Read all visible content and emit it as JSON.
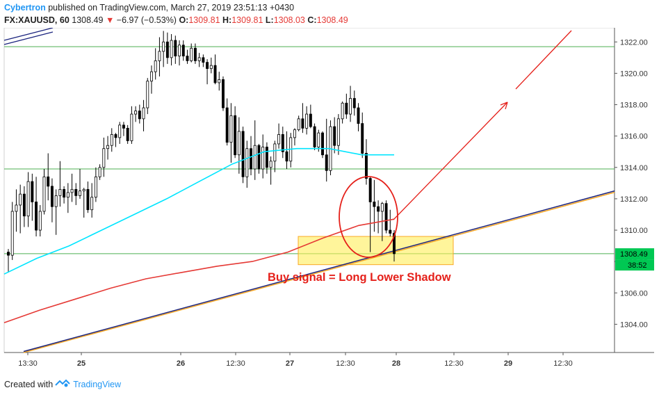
{
  "header": {
    "author": "Cybertron",
    "published_text": "published on TradingView.com, March 27, 2019 23:51:13 +0430"
  },
  "ohlc_bar": {
    "symbol": "FX:XAUUSD, 60",
    "last": "1308.49",
    "change": "−6.97 (−0.53%)",
    "o_label": "O:",
    "o_value": "1309.81",
    "h_label": "H:",
    "h_value": "1309.81",
    "l_label": "L:",
    "l_value": "1308.03",
    "c_label": "C:",
    "c_value": "1308.49"
  },
  "footer": {
    "created_with": "Created with",
    "brand": "TradingView"
  },
  "colors": {
    "up": "#000000",
    "down": "#000000",
    "ma_fast": "#00e5ff",
    "ma_slow": "#e53935",
    "trendline": "#1a237e",
    "hline": "#4caf50",
    "zone": "#ffee58",
    "annotation": "#e5201a",
    "price_label": "#00c853"
  },
  "chart_data": {
    "type": "candlestick",
    "ylim": [
      1302.2,
      1322.9
    ],
    "yticks": [
      "1322.00",
      "1320.00",
      "1318.00",
      "1316.00",
      "1314.00",
      "1312.00",
      "1310.00",
      "1308.00",
      "1306.00",
      "1304.00"
    ],
    "xticks": [
      "13:30",
      "25",
      "26",
      "12:30",
      "27",
      "12:30",
      "28",
      "12:30",
      "29",
      "12:30"
    ],
    "last_price_label": "1308.49",
    "countdown_label": "38:52",
    "annotation": "Buy signal =  Long Lower Shadow",
    "horizontal_levels": [
      1321.7,
      1313.9,
      1308.5
    ],
    "support_zone": [
      1307.8,
      1309.6
    ],
    "candles": [
      [
        1308.6,
        1308.8,
        1307.3,
        1308.4
      ],
      [
        1308.4,
        1311.8,
        1308.1,
        1311.2
      ],
      [
        1311.2,
        1312.6,
        1309.9,
        1311.6
      ],
      [
        1311.6,
        1312.9,
        1309.8,
        1312.3
      ],
      [
        1312.3,
        1312.8,
        1310.2,
        1310.9
      ],
      [
        1310.9,
        1313.7,
        1310.2,
        1313.1
      ],
      [
        1313.1,
        1313.6,
        1310.6,
        1311.8
      ],
      [
        1311.8,
        1313.4,
        1309.6,
        1310.0
      ],
      [
        1310.0,
        1311.6,
        1309.6,
        1311.2
      ],
      [
        1311.2,
        1313.9,
        1311.0,
        1313.4
      ],
      [
        1313.4,
        1314.9,
        1311.9,
        1312.8
      ],
      [
        1312.8,
        1313.3,
        1310.5,
        1311.5
      ],
      [
        1311.5,
        1312.6,
        1309.7,
        1312.2
      ],
      [
        1312.2,
        1314.4,
        1311.5,
        1312.6
      ],
      [
        1312.6,
        1312.8,
        1311.7,
        1312.1
      ],
      [
        1312.1,
        1313.0,
        1311.1,
        1312.4
      ],
      [
        1312.4,
        1313.6,
        1311.8,
        1312.6
      ],
      [
        1312.6,
        1313.0,
        1311.6,
        1312.2
      ],
      [
        1312.2,
        1313.9,
        1312.0,
        1312.5
      ],
      [
        1312.5,
        1312.7,
        1310.8,
        1312.6
      ],
      [
        1312.6,
        1313.1,
        1311.1,
        1311.3
      ],
      [
        1311.3,
        1313.0,
        1310.8,
        1312.1
      ],
      [
        1312.1,
        1314.0,
        1311.8,
        1313.4
      ],
      [
        1313.4,
        1314.2,
        1313.2,
        1314.0
      ],
      [
        1314.0,
        1315.9,
        1313.4,
        1315.2
      ],
      [
        1315.2,
        1316.0,
        1314.5,
        1315.4
      ],
      [
        1315.4,
        1316.5,
        1315.0,
        1316.1
      ],
      [
        1316.1,
        1316.2,
        1315.3,
        1315.9
      ],
      [
        1315.9,
        1316.9,
        1315.5,
        1316.7
      ],
      [
        1316.7,
        1316.9,
        1316.0,
        1316.5
      ],
      [
        1316.5,
        1316.7,
        1315.5,
        1315.7
      ],
      [
        1315.7,
        1317.9,
        1315.5,
        1317.4
      ],
      [
        1317.4,
        1317.9,
        1316.9,
        1317.6
      ],
      [
        1317.6,
        1318.0,
        1316.8,
        1317.1
      ],
      [
        1317.1,
        1318.3,
        1316.3,
        1317.8
      ],
      [
        1317.8,
        1319.7,
        1317.4,
        1319.5
      ],
      [
        1319.5,
        1320.5,
        1318.7,
        1320.1
      ],
      [
        1320.1,
        1321.6,
        1319.6,
        1320.8
      ],
      [
        1320.8,
        1322.3,
        1319.8,
        1321.4
      ],
      [
        1321.4,
        1322.7,
        1320.4,
        1322.0
      ],
      [
        1322.0,
        1322.6,
        1320.6,
        1321.0
      ],
      [
        1321.0,
        1322.5,
        1320.5,
        1322.1
      ],
      [
        1322.1,
        1322.4,
        1320.6,
        1321.1
      ],
      [
        1321.1,
        1322.1,
        1320.5,
        1321.8
      ],
      [
        1321.8,
        1322.1,
        1320.8,
        1321.1
      ],
      [
        1321.1,
        1321.5,
        1320.6,
        1320.8
      ],
      [
        1320.8,
        1321.9,
        1320.7,
        1321.6
      ],
      [
        1321.6,
        1321.9,
        1320.6,
        1320.8
      ],
      [
        1320.8,
        1321.3,
        1320.4,
        1321.0
      ],
      [
        1321.0,
        1321.2,
        1320.4,
        1320.7
      ],
      [
        1320.7,
        1320.9,
        1319.3,
        1320.3
      ],
      [
        1320.3,
        1321.0,
        1320.0,
        1320.5
      ],
      [
        1320.5,
        1321.2,
        1319.3,
        1319.4
      ],
      [
        1319.4,
        1320.1,
        1318.9,
        1319.6
      ],
      [
        1319.6,
        1319.8,
        1317.6,
        1317.8
      ],
      [
        1317.8,
        1318.4,
        1315.4,
        1315.6
      ],
      [
        1315.6,
        1318.1,
        1314.3,
        1317.3
      ],
      [
        1317.3,
        1317.9,
        1314.6,
        1314.8
      ],
      [
        1314.8,
        1317.2,
        1313.6,
        1316.3
      ],
      [
        1316.3,
        1316.6,
        1313.0,
        1313.4
      ],
      [
        1313.4,
        1315.7,
        1312.7,
        1315.2
      ],
      [
        1315.2,
        1316.0,
        1313.5,
        1313.9
      ],
      [
        1313.9,
        1317.0,
        1313.2,
        1315.4
      ],
      [
        1315.4,
        1315.5,
        1313.6,
        1313.9
      ],
      [
        1313.9,
        1316.1,
        1313.3,
        1315.3
      ],
      [
        1315.3,
        1315.6,
        1313.6,
        1314.0
      ],
      [
        1314.0,
        1314.7,
        1312.9,
        1314.4
      ],
      [
        1314.4,
        1315.7,
        1313.7,
        1315.5
      ],
      [
        1315.5,
        1316.8,
        1315.2,
        1316.1
      ],
      [
        1316.1,
        1316.6,
        1314.6,
        1315.0
      ],
      [
        1315.0,
        1316.3,
        1313.9,
        1314.4
      ],
      [
        1314.4,
        1316.2,
        1314.0,
        1315.9
      ],
      [
        1315.9,
        1316.5,
        1315.4,
        1316.4
      ],
      [
        1316.4,
        1317.3,
        1316.3,
        1317.1
      ],
      [
        1317.1,
        1318.1,
        1316.2,
        1316.5
      ],
      [
        1316.5,
        1317.9,
        1316.1,
        1317.4
      ],
      [
        1317.4,
        1318.0,
        1316.5,
        1316.6
      ],
      [
        1316.6,
        1316.8,
        1315.1,
        1315.3
      ],
      [
        1315.3,
        1316.4,
        1315.0,
        1316.2
      ],
      [
        1316.2,
        1316.3,
        1314.6,
        1314.8
      ],
      [
        1314.8,
        1317.1,
        1313.1,
        1313.8
      ],
      [
        1313.8,
        1317.0,
        1313.5,
        1316.6
      ],
      [
        1316.6,
        1317.2,
        1314.9,
        1315.4
      ],
      [
        1315.4,
        1317.4,
        1314.8,
        1317.1
      ],
      [
        1317.1,
        1318.2,
        1316.8,
        1318.1
      ],
      [
        1318.1,
        1318.7,
        1317.1,
        1317.4
      ],
      [
        1317.4,
        1319.2,
        1316.9,
        1318.4
      ],
      [
        1318.4,
        1318.9,
        1317.3,
        1317.8
      ],
      [
        1317.8,
        1318.1,
        1316.3,
        1316.8
      ],
      [
        1316.8,
        1317.5,
        1314.6,
        1314.9
      ],
      [
        1314.9,
        1315.8,
        1312.9,
        1313.3
      ],
      [
        1313.3,
        1313.4,
        1308.6,
        1311.8
      ],
      [
        1311.8,
        1313.2,
        1309.9,
        1311.5
      ],
      [
        1311.5,
        1311.9,
        1309.8,
        1311.2
      ],
      [
        1311.2,
        1311.8,
        1309.3,
        1311.7
      ],
      [
        1311.7,
        1311.9,
        1309.8,
        1310.0
      ],
      [
        1310.0,
        1311.3,
        1309.6,
        1309.8
      ],
      [
        1309.8,
        1310.0,
        1308.0,
        1308.5
      ]
    ],
    "ma_fast": [
      1307.2,
      1308.2,
      1309.0,
      1310.0,
      1311.0,
      1312.0,
      1313.1,
      1314.2,
      1315.0,
      1315.2,
      1315.2,
      1314.8,
      1314.8
    ],
    "ma_slow": [
      1304.1,
      1304.9,
      1305.6,
      1306.3,
      1306.9,
      1307.3,
      1307.7,
      1308.0,
      1308.6,
      1309.5,
      1310.3,
      1310.7
    ],
    "trendline": [
      [
        1302.2,
        1313.0
      ]
    ]
  }
}
